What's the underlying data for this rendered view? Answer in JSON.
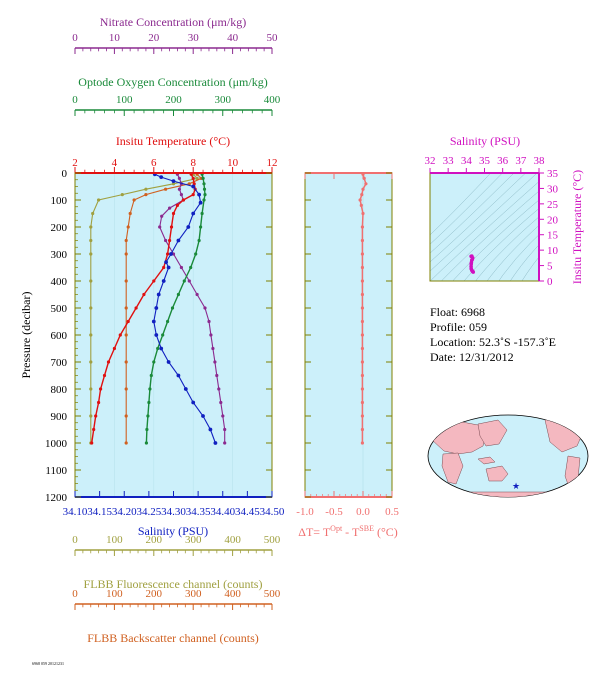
{
  "colors": {
    "nitrate": "#8b2a8f",
    "oxygen": "#1a8a3a",
    "temperature": "#e01010",
    "salinity": "#1020c0",
    "fluorescence": "#a0a040",
    "backscatter": "#d06020",
    "delta": "#f07070",
    "ts_axes": "#d010c0",
    "panel_bg": "#ccf0fa",
    "axis": "#808000"
  },
  "chart_data": [
    {
      "type": "line",
      "panel": "main-profile",
      "ylabel": "Pressure (decibar)",
      "ylim": [
        0,
        1200
      ],
      "y_ticks": [
        "0",
        "100",
        "200",
        "300",
        "400",
        "500",
        "600",
        "700",
        "800",
        "900",
        "1000",
        "1100",
        "1200"
      ],
      "axes": {
        "nitrate": {
          "label": "Nitrate Concentration (μm/kg)",
          "lim": [
            0,
            50
          ],
          "ticks": [
            "0",
            "10",
            "20",
            "30",
            "40",
            "50"
          ]
        },
        "oxygen": {
          "label": "Optode Oxygen Concentration (μm/kg)",
          "lim": [
            0,
            400
          ],
          "ticks": [
            "0",
            "100",
            "200",
            "300",
            "400"
          ]
        },
        "temperature": {
          "label": "Insitu Temperature (°C)",
          "lim": [
            2,
            12
          ],
          "ticks": [
            "2",
            "4",
            "6",
            "8",
            "10",
            "12"
          ]
        },
        "salinity": {
          "label": "Salinity (PSU)",
          "lim": [
            34.1,
            34.5
          ],
          "ticks": [
            "34.10",
            "34.15",
            "34.20",
            "34.25",
            "34.30",
            "34.35",
            "34.40",
            "34.45",
            "34.50"
          ]
        },
        "fluorescence": {
          "label": "FLBB Fluorescence channel (counts)",
          "lim": [
            0,
            500
          ],
          "ticks": [
            "0",
            "100",
            "200",
            "300",
            "400",
            "500"
          ]
        },
        "backscatter": {
          "label": "FLBB Backscatter channel (counts)",
          "lim": [
            0,
            500
          ],
          "ticks": [
            "0",
            "100",
            "200",
            "300",
            "400",
            "500"
          ]
        }
      },
      "series": [
        {
          "key": "nitrate",
          "values": [
            [
              26,
              5
            ],
            [
              26.5,
              20
            ],
            [
              27,
              40
            ],
            [
              26.5,
              60
            ],
            [
              27,
              80
            ],
            [
              27.5,
              100
            ],
            [
              24,
              130
            ],
            [
              22,
              160
            ],
            [
              21.5,
              200
            ],
            [
              23,
              250
            ],
            [
              25,
              300
            ],
            [
              27,
              350
            ],
            [
              29,
              400
            ],
            [
              31,
              450
            ],
            [
              33,
              500
            ],
            [
              34,
              550
            ],
            [
              34.5,
              600
            ],
            [
              35,
              650
            ],
            [
              35.5,
              700
            ],
            [
              36,
              750
            ],
            [
              36.5,
              800
            ],
            [
              37,
              850
            ],
            [
              37.5,
              900
            ],
            [
              38,
              950
            ],
            [
              38,
              1000
            ]
          ]
        },
        {
          "key": "oxygen",
          "values": [
            [
              258,
              5
            ],
            [
              260,
              20
            ],
            [
              262,
              40
            ],
            [
              263,
              60
            ],
            [
              264,
              80
            ],
            [
              262,
              100
            ],
            [
              258,
              150
            ],
            [
              255,
              200
            ],
            [
              252,
              250
            ],
            [
              245,
              300
            ],
            [
              235,
              350
            ],
            [
              222,
              400
            ],
            [
              210,
              450
            ],
            [
              198,
              500
            ],
            [
              188,
              550
            ],
            [
              178,
              600
            ],
            [
              168,
              650
            ],
            [
              160,
              700
            ],
            [
              155,
              750
            ],
            [
              152,
              800
            ],
            [
              150,
              850
            ],
            [
              148,
              900
            ],
            [
              146,
              950
            ],
            [
              145,
              1000
            ]
          ]
        },
        {
          "key": "temperature",
          "values": [
            [
              7.9,
              5
            ],
            [
              8.0,
              20
            ],
            [
              8.05,
              40
            ],
            [
              8.1,
              60
            ],
            [
              8.0,
              80
            ],
            [
              7.5,
              100
            ],
            [
              7.2,
              120
            ],
            [
              7.0,
              150
            ],
            [
              6.9,
              200
            ],
            [
              6.8,
              250
            ],
            [
              6.7,
              300
            ],
            [
              6.5,
              350
            ],
            [
              6.0,
              400
            ],
            [
              5.5,
              450
            ],
            [
              5.1,
              500
            ],
            [
              4.7,
              550
            ],
            [
              4.3,
              600
            ],
            [
              4.0,
              650
            ],
            [
              3.7,
              700
            ],
            [
              3.5,
              750
            ],
            [
              3.3,
              800
            ],
            [
              3.2,
              850
            ],
            [
              3.05,
              900
            ],
            [
              2.95,
              950
            ],
            [
              2.85,
              1000
            ]
          ]
        },
        {
          "key": "salinity",
          "values": [
            [
              34.262,
              5
            ],
            [
              34.275,
              15
            ],
            [
              34.3,
              30
            ],
            [
              34.34,
              50
            ],
            [
              34.352,
              80
            ],
            [
              34.355,
              110
            ],
            [
              34.34,
              150
            ],
            [
              34.33,
              200
            ],
            [
              34.31,
              250
            ],
            [
              34.295,
              300
            ],
            [
              34.285,
              330
            ],
            [
              34.29,
              350
            ],
            [
              34.28,
              400
            ],
            [
              34.27,
              450
            ],
            [
              34.265,
              500
            ],
            [
              34.26,
              550
            ],
            [
              34.265,
              600
            ],
            [
              34.275,
              650
            ],
            [
              34.29,
              700
            ],
            [
              34.31,
              750
            ],
            [
              34.325,
              800
            ],
            [
              34.34,
              850
            ],
            [
              34.36,
              900
            ],
            [
              34.375,
              950
            ],
            [
              34.385,
              1000
            ]
          ]
        },
        {
          "key": "fluorescence",
          "values": [
            [
              300,
              5
            ],
            [
              310,
              20
            ],
            [
              250,
              40
            ],
            [
              180,
              60
            ],
            [
              120,
              80
            ],
            [
              60,
              100
            ],
            [
              45,
              150
            ],
            [
              40,
              200
            ],
            [
              40,
              250
            ],
            [
              40,
              300
            ],
            [
              40,
              400
            ],
            [
              40,
              500
            ],
            [
              40,
              600
            ],
            [
              40,
              700
            ],
            [
              40,
              800
            ],
            [
              40,
              900
            ],
            [
              40,
              1000
            ]
          ]
        },
        {
          "key": "backscatter",
          "values": [
            [
              310,
              5
            ],
            [
              320,
              20
            ],
            [
              290,
              40
            ],
            [
              230,
              60
            ],
            [
              180,
              80
            ],
            [
              150,
              100
            ],
            [
              140,
              150
            ],
            [
              135,
              200
            ],
            [
              130,
              250
            ],
            [
              130,
              300
            ],
            [
              130,
              400
            ],
            [
              130,
              500
            ],
            [
              130,
              600
            ],
            [
              130,
              700
            ],
            [
              130,
              800
            ],
            [
              130,
              900
            ],
            [
              130,
              1000
            ]
          ]
        }
      ]
    },
    {
      "type": "line",
      "panel": "delta-t",
      "xlabel": "ΔT= T^Opt - T^SBE (°C)",
      "xlim": [
        -1.0,
        0.5
      ],
      "x_ticks": [
        "-1.0",
        "-0.5",
        "0.0",
        "0.5"
      ],
      "ylim": [
        0,
        1200
      ],
      "series": [
        {
          "key": "delta",
          "values": [
            [
              0.0,
              5
            ],
            [
              0.02,
              20
            ],
            [
              0.05,
              40
            ],
            [
              0.0,
              60
            ],
            [
              -0.02,
              80
            ],
            [
              -0.05,
              100
            ],
            [
              -0.03,
              120
            ],
            [
              0.0,
              150
            ],
            [
              -0.01,
              200
            ],
            [
              -0.01,
              250
            ],
            [
              -0.01,
              300
            ],
            [
              -0.01,
              350
            ],
            [
              -0.01,
              400
            ],
            [
              -0.01,
              450
            ],
            [
              -0.01,
              500
            ],
            [
              -0.01,
              550
            ],
            [
              -0.01,
              600
            ],
            [
              -0.01,
              650
            ],
            [
              -0.01,
              700
            ],
            [
              -0.01,
              750
            ],
            [
              -0.01,
              800
            ],
            [
              -0.01,
              850
            ],
            [
              -0.01,
              900
            ],
            [
              -0.01,
              950
            ],
            [
              -0.01,
              1000
            ]
          ]
        }
      ]
    },
    {
      "type": "scatter",
      "panel": "ts-diagram",
      "xlabel": "Salinity (PSU)",
      "ylabel": "Insitu Temperature (°C)",
      "xlim": [
        32,
        38
      ],
      "ylim": [
        0,
        35
      ],
      "x_ticks": [
        "32",
        "33",
        "34",
        "35",
        "36",
        "37",
        "38"
      ],
      "y_ticks": [
        "0",
        "5",
        "10",
        "15",
        "20",
        "25",
        "30",
        "35"
      ],
      "values": [
        [
          34.26,
          8.0
        ],
        [
          34.3,
          8.1
        ],
        [
          34.35,
          7.5
        ],
        [
          34.33,
          7.0
        ],
        [
          34.3,
          6.8
        ],
        [
          34.28,
          6.0
        ],
        [
          34.27,
          5.5
        ],
        [
          34.26,
          4.7
        ],
        [
          34.27,
          4.0
        ],
        [
          34.3,
          3.5
        ],
        [
          34.33,
          3.2
        ],
        [
          34.36,
          3.05
        ],
        [
          34.38,
          2.9
        ]
      ]
    }
  ],
  "info": {
    "float": "Float:  6968",
    "profile": "Profile:  059",
    "location": "Location:  52.3˚S  -157.3˚E",
    "date": "Date:  12/31/2012"
  },
  "footer": "6968 059 20121231"
}
